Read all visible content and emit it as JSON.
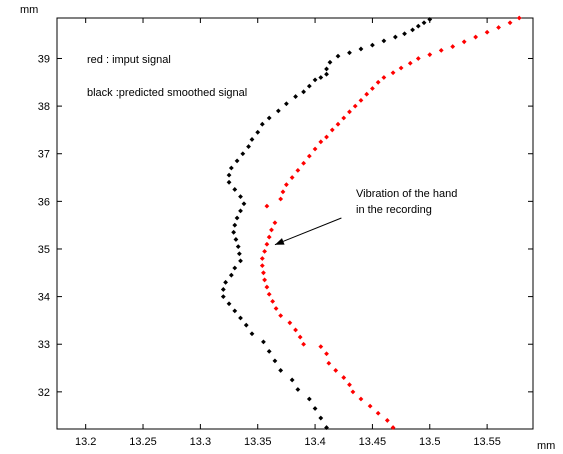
{
  "chart_data": {
    "type": "scatter",
    "title": "",
    "xlabel": "mm",
    "ylabel": "mm",
    "xlim": [
      13.175,
      13.59
    ],
    "ylim": [
      31.22,
      39.85
    ],
    "xticks": [
      13.2,
      13.25,
      13.3,
      13.35,
      13.4,
      13.45,
      13.5,
      13.55
    ],
    "xtick_labels": [
      "13.2",
      "13.25",
      "13.3",
      "13.35",
      "13.4",
      "13.45",
      "13.5",
      "13.55"
    ],
    "yticks": [
      32,
      33,
      34,
      35,
      36,
      37,
      38,
      39
    ],
    "ytick_labels": [
      "32",
      "33",
      "34",
      "35",
      "36",
      "37",
      "38",
      "39"
    ],
    "grid": false,
    "legend_lines": [
      "red : imput signal",
      "black :predicted smoothed signal"
    ],
    "annotation": {
      "lines": [
        "Vibration of the hand",
        "in the recording"
      ],
      "points_to": [
        13.365,
        35.09
      ],
      "text_anchor": [
        13.375,
        35.17
      ]
    },
    "series": [
      {
        "color": "#000000",
        "x": [
          13.41,
          13.405,
          13.4,
          13.395,
          13.385,
          13.38,
          13.37,
          13.365,
          13.36,
          13.355,
          13.345,
          13.34,
          13.335,
          13.33,
          13.325,
          13.32,
          13.32,
          13.322,
          13.327,
          13.33,
          13.335,
          13.334,
          13.333,
          13.331,
          13.329,
          13.33,
          13.332,
          13.335,
          13.338,
          13.335,
          13.33,
          13.325,
          13.325,
          13.327,
          13.332,
          13.337,
          13.342,
          13.345,
          13.35,
          13.354,
          13.36,
          13.368,
          13.375,
          13.383,
          13.39,
          13.395,
          13.4,
          13.405,
          13.41,
          13.41,
          13.413,
          13.42,
          13.43,
          13.44,
          13.45,
          13.46,
          13.47,
          13.478,
          13.485,
          13.49,
          13.495,
          13.5
        ],
        "y": [
          31.25,
          31.45,
          31.65,
          31.85,
          32.05,
          32.25,
          32.45,
          32.65,
          32.85,
          33.05,
          33.22,
          33.4,
          33.55,
          33.7,
          33.85,
          34.0,
          34.15,
          34.3,
          34.45,
          34.6,
          34.75,
          34.9,
          35.05,
          35.2,
          35.35,
          35.5,
          35.65,
          35.8,
          35.95,
          36.1,
          36.25,
          36.4,
          36.55,
          36.7,
          36.85,
          37.0,
          37.15,
          37.3,
          37.45,
          37.62,
          37.75,
          37.9,
          38.05,
          38.2,
          38.3,
          38.42,
          38.55,
          38.6,
          38.67,
          38.78,
          38.92,
          39.05,
          39.12,
          39.2,
          39.28,
          39.37,
          39.45,
          39.52,
          39.6,
          39.68,
          39.75,
          39.82
        ]
      },
      {
        "color": "#ff0000",
        "x": [
          13.468,
          13.463,
          13.455,
          13.448,
          13.44,
          13.433,
          13.43,
          13.425,
          13.418,
          13.412,
          13.41,
          13.405,
          13.39,
          13.387,
          13.383,
          13.378,
          13.37,
          13.366,
          13.363,
          13.36,
          13.358,
          13.356,
          13.355,
          13.354,
          13.354,
          13.356,
          13.358,
          13.36,
          13.362,
          13.365,
          13.358,
          13.37,
          13.372,
          13.375,
          13.38,
          13.385,
          13.39,
          13.395,
          13.4,
          13.405,
          13.41,
          13.415,
          13.42,
          13.425,
          13.43,
          13.435,
          13.44,
          13.445,
          13.45,
          13.455,
          13.46,
          13.468,
          13.475,
          13.483,
          13.49,
          13.5,
          13.51,
          13.52,
          13.53,
          13.54,
          13.55,
          13.56,
          13.57,
          13.578
        ],
        "y": [
          31.25,
          31.4,
          31.55,
          31.7,
          31.85,
          32.0,
          32.15,
          32.3,
          32.45,
          32.6,
          32.8,
          32.95,
          33.0,
          33.15,
          33.3,
          33.45,
          33.6,
          33.75,
          33.9,
          34.05,
          34.2,
          34.35,
          34.5,
          34.65,
          34.8,
          34.95,
          35.1,
          35.25,
          35.4,
          35.55,
          35.9,
          36.05,
          36.2,
          36.35,
          36.5,
          36.65,
          36.8,
          36.95,
          37.1,
          37.25,
          37.35,
          37.5,
          37.62,
          37.75,
          37.88,
          38.0,
          38.12,
          38.25,
          38.37,
          38.5,
          38.6,
          38.7,
          38.8,
          38.9,
          39.0,
          39.08,
          39.17,
          39.25,
          39.35,
          39.45,
          39.55,
          39.65,
          39.75,
          39.85
        ]
      }
    ]
  }
}
